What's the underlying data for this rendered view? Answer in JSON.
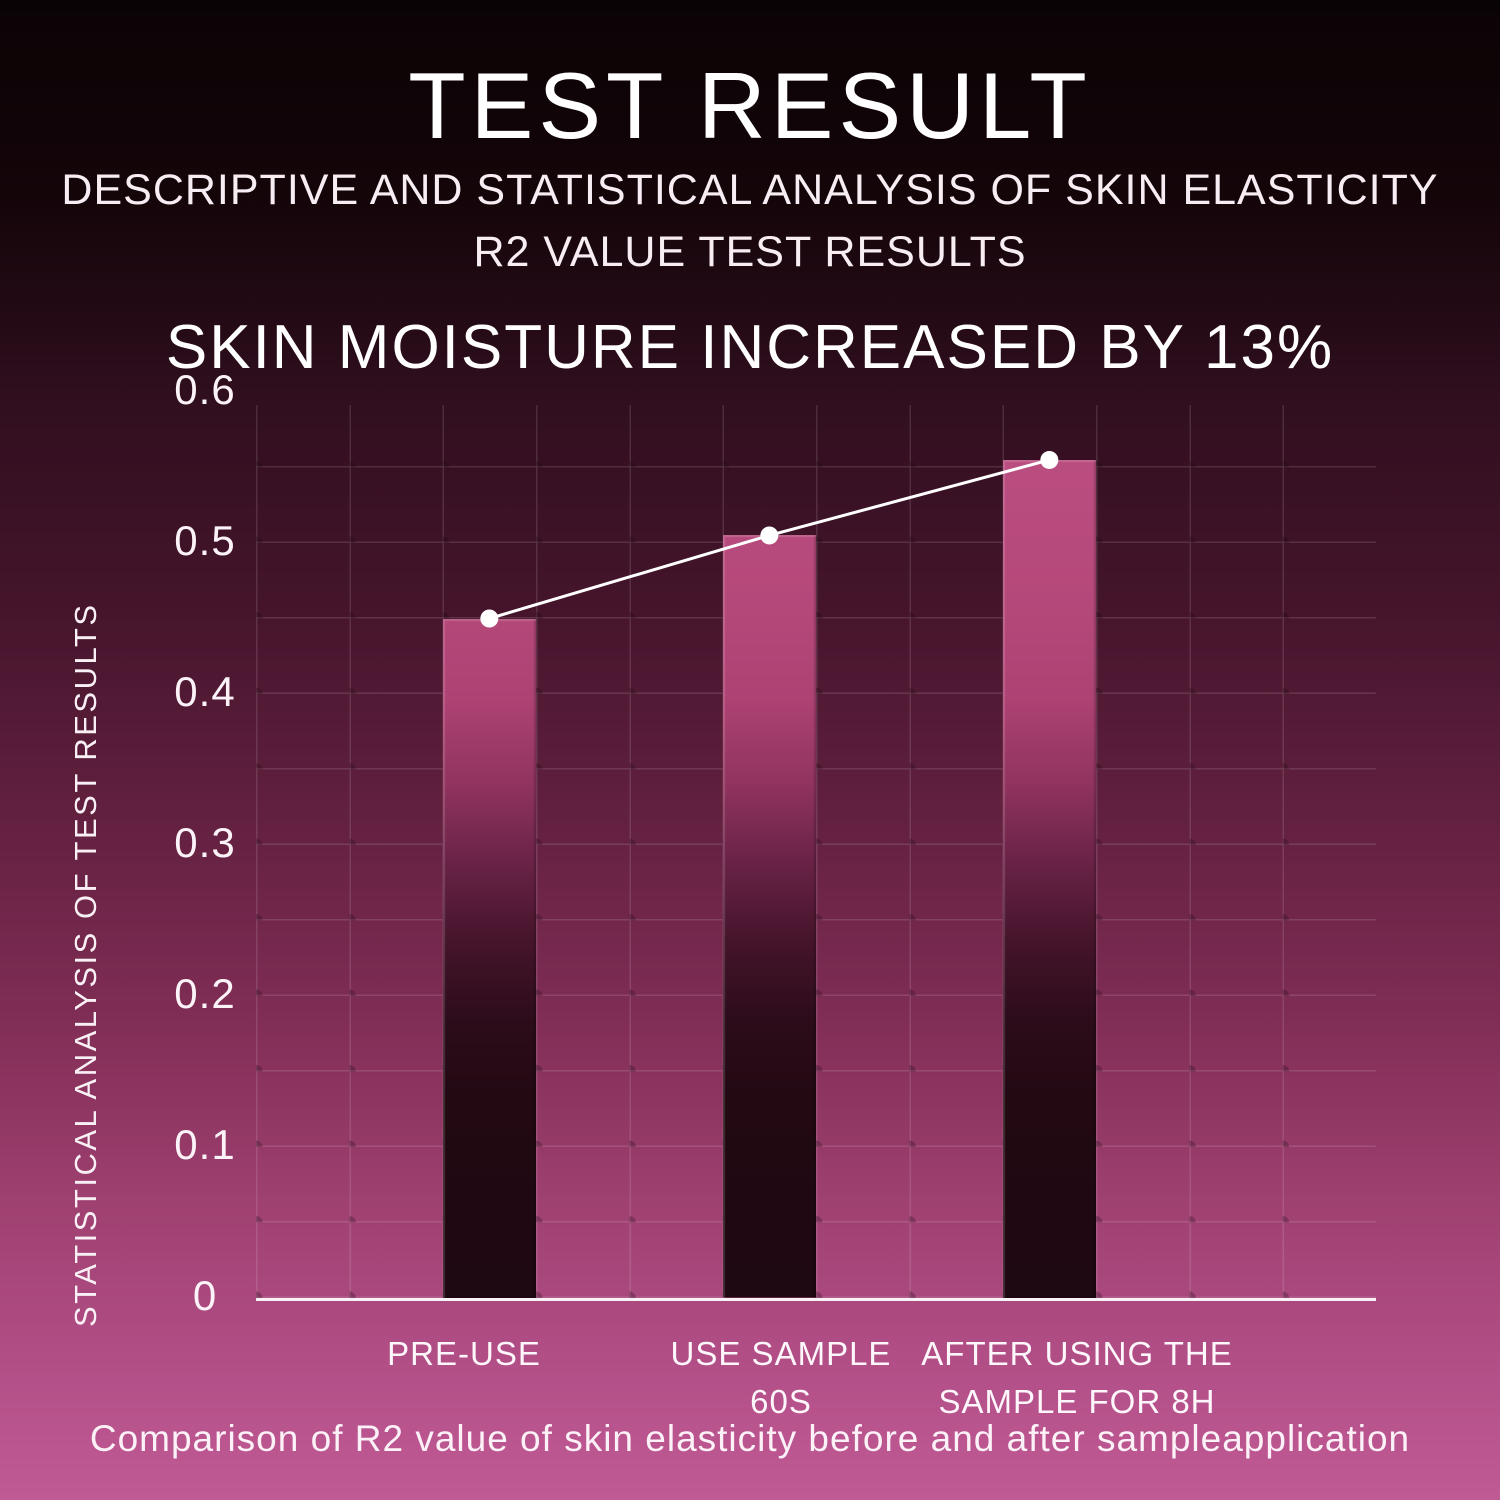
{
  "page": {
    "title": "TEST RESULT",
    "subtitle_line1": "DESCRIPTIVE AND STATISTICAL ANALYSIS OF SKIN ELASTICITY",
    "subtitle_line2": "R2 VALUE TEST RESULTS",
    "caption": "Comparison of R2 value of skin elasticity before and after sampleapplication"
  },
  "chart_data": {
    "type": "bar",
    "title": "SKIN MOISTURE INCREASED BY 13%",
    "ylabel": "STATISTICAL ANALYSIS OF TEST RESULTS",
    "xlabel": "",
    "categories": [
      "PRE-USE",
      "USE SAMPLE 60S",
      "AFTER USING THE SAMPLE FOR 8H"
    ],
    "category_label_lines": [
      [
        "PRE-USE"
      ],
      [
        "USE SAMPLE",
        "60S"
      ],
      [
        "AFTER USING THE",
        "SAMPLE FOR 8H"
      ]
    ],
    "values": [
      0.45,
      0.505,
      0.555
    ],
    "series": [
      {
        "name": "R2 value bars",
        "type": "bar",
        "values": [
          0.45,
          0.505,
          0.555
        ]
      },
      {
        "name": "trend line",
        "type": "line",
        "values": [
          0.45,
          0.505,
          0.555
        ]
      }
    ],
    "ylim": [
      0,
      0.6
    ],
    "yticks": [
      0.6,
      0.5,
      0.4,
      0.3,
      0.2,
      0.1,
      0
    ],
    "grid": "on",
    "legend": "none",
    "colors": {
      "background_top": "#0a0305",
      "background_bottom": "#c05a95",
      "bar_top": "#bd4f82",
      "bar_bottom": "#1e0811",
      "trend_line": "#ffffff",
      "marker": "#ffffff",
      "text": "#ffffff",
      "gridline": "rgba(255,240,248,0.13)"
    }
  }
}
